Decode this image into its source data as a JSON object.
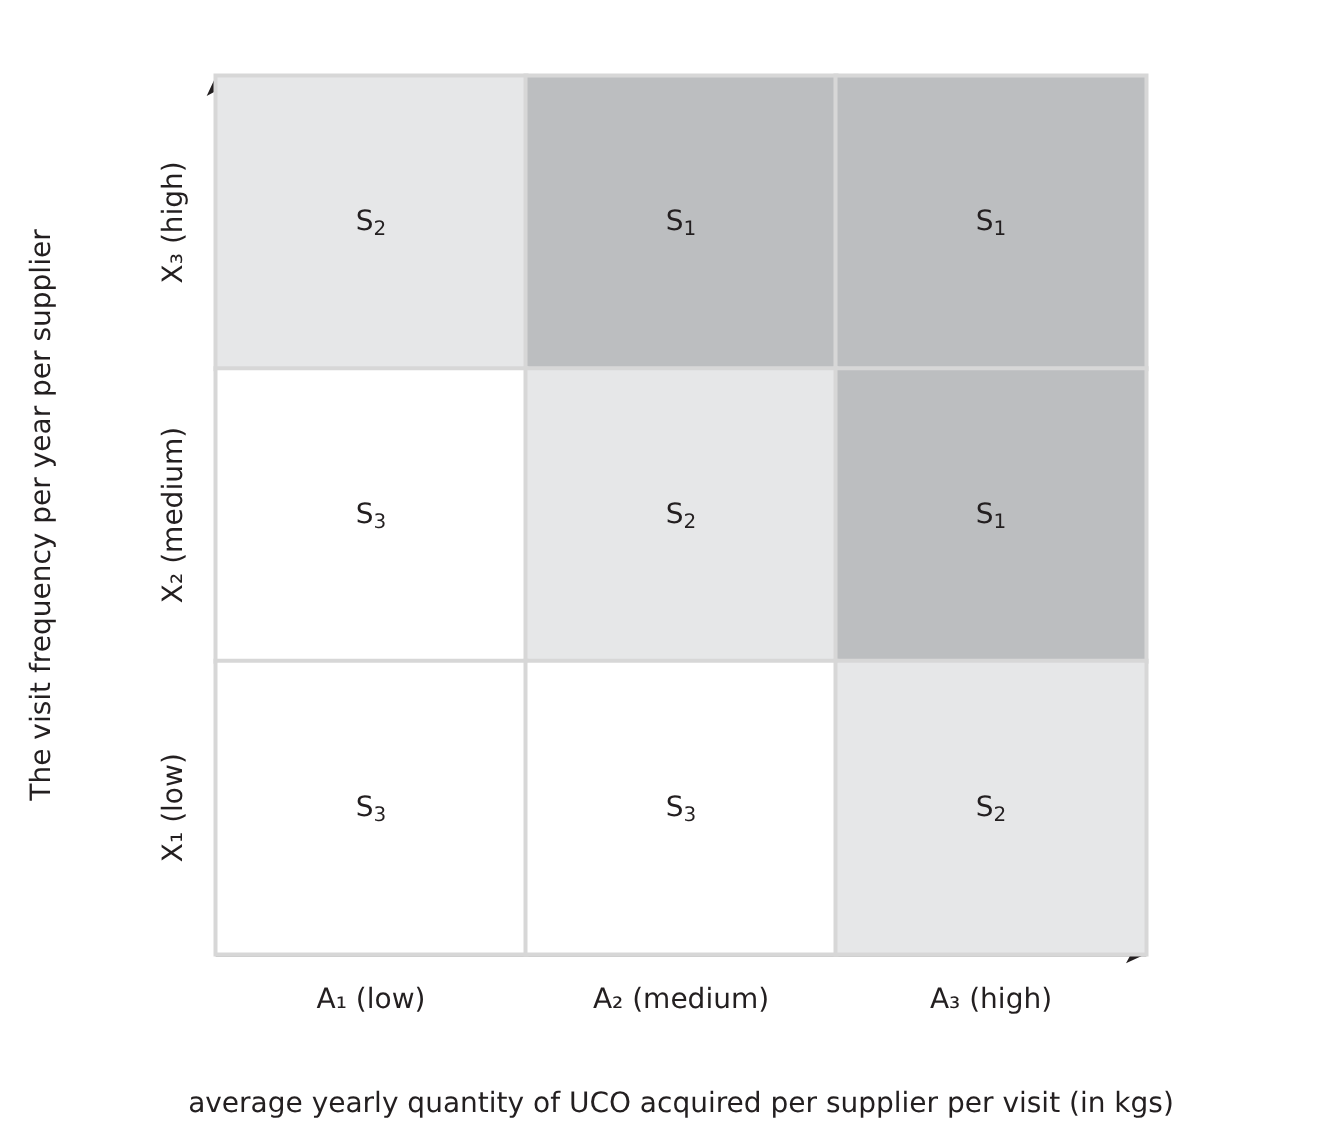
{
  "chart_data": {
    "type": "heatmap",
    "xlabel": "average yearly quantity of UCO acquired per supplier per visit (in kgs)",
    "ylabel": "The visit frequency per year per supplier",
    "categories": [
      "A₁ (low)",
      "A₂ (medium)",
      "A₃ (high)"
    ],
    "y_categories": [
      "X₃ (high)",
      "X₂ (medium)",
      "X₁ (low)"
    ],
    "cells": [
      [
        2,
        1,
        1
      ],
      [
        3,
        2,
        1
      ],
      [
        3,
        3,
        2
      ]
    ],
    "cell_labels": [
      [
        "S$_{2}$",
        "S$_{1}$",
        "S$_{1}$"
      ],
      [
        "S$_{3}$",
        "S$_{2}$",
        "S$_{1}$"
      ],
      [
        "S$_{3}$",
        "S$_{3}$",
        "S$_{2}$"
      ]
    ],
    "colors": [
      "#bcbec0",
      "#e6e7e8",
      "#ffffff"
    ]
  }
}
